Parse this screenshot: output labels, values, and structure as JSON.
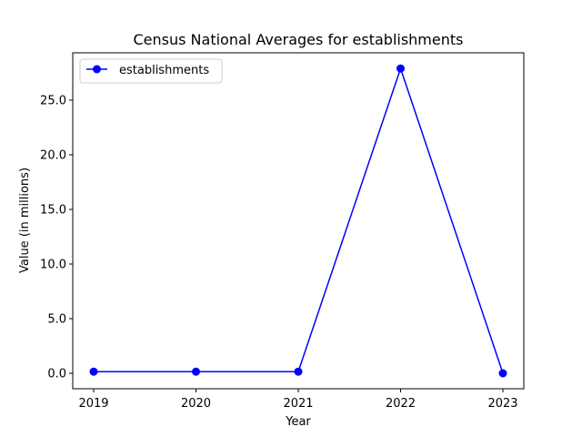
{
  "chart_data": {
    "type": "line",
    "title": "Census National Averages for establishments",
    "xlabel": "Year",
    "ylabel": "Value (in millions)",
    "categories": [
      "2019",
      "2020",
      "2021",
      "2022",
      "2023"
    ],
    "series": [
      {
        "name": "establishments",
        "values": [
          0.15,
          0.15,
          0.15,
          27.9,
          0.0
        ],
        "color": "#0000ff"
      }
    ],
    "y_ticks": [
      "0.0",
      "5.0",
      "10.0",
      "15.0",
      "20.0",
      "25.0"
    ],
    "y_tick_values": [
      0,
      5,
      10,
      15,
      20,
      25
    ],
    "ylim": [
      -1.4,
      29.3
    ],
    "grid": false,
    "legend_position": "upper-left",
    "marker": "circle"
  }
}
